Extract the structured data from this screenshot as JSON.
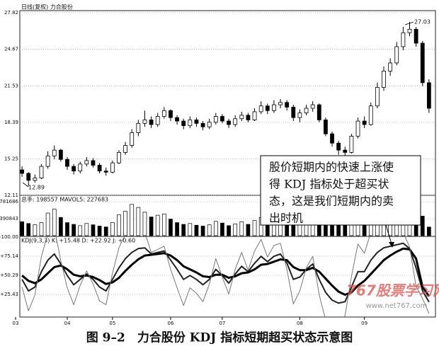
{
  "chart_data": [
    {
      "type": "candlestick",
      "title": "日线(复权)  力合股份",
      "open": [
        14.3,
        14.0,
        13.4,
        13.6,
        14.6,
        15.5,
        16.0,
        15.2,
        14.6,
        14.2,
        14.8,
        15.1,
        14.7,
        14.2,
        14.1,
        14.9,
        15.8,
        16.4,
        17.5,
        18.3,
        18.6,
        18.2,
        18.9,
        19.4,
        18.8,
        18.5,
        18.1,
        18.6,
        18.3,
        18.0,
        18.4,
        18.9,
        18.5,
        18.2,
        18.7,
        19.0,
        18.6,
        19.3,
        19.8,
        19.4,
        19.9,
        20.1,
        19.7,
        18.8,
        19.2,
        19.6,
        19.9,
        18.6,
        17.4,
        16.6,
        16.0,
        15.8,
        17.2,
        18.5,
        18.2,
        19.8,
        21.4,
        22.8,
        23.5,
        24.9,
        26.1,
        26.4,
        25.2,
        21.8
      ],
      "high": [
        14.6,
        14.1,
        13.9,
        14.8,
        15.9,
        16.4,
        16.1,
        15.4,
        14.8,
        15.0,
        15.4,
        15.3,
        14.9,
        14.5,
        15.1,
        16.0,
        16.7,
        17.8,
        18.6,
        19.4,
        18.9,
        19.2,
        19.7,
        19.5,
        19.0,
        18.7,
        18.9,
        18.8,
        18.5,
        18.7,
        19.2,
        19.1,
        18.7,
        19.0,
        19.3,
        19.2,
        19.6,
        20.2,
        20.0,
        20.3,
        20.4,
        20.3,
        19.9,
        19.5,
        19.9,
        20.2,
        20.0,
        18.8,
        17.6,
        16.8,
        16.3,
        17.4,
        18.8,
        18.9,
        20.1,
        21.8,
        23.2,
        23.9,
        25.3,
        26.6,
        27.03,
        26.6,
        25.4,
        22.1
      ],
      "low": [
        13.7,
        12.89,
        13.2,
        13.5,
        14.4,
        15.2,
        15.0,
        14.3,
        13.9,
        14.0,
        14.6,
        14.5,
        14.0,
        13.8,
        14.0,
        14.8,
        15.6,
        16.2,
        17.2,
        18.0,
        17.9,
        18.0,
        18.7,
        18.5,
        18.2,
        17.8,
        17.9,
        18.0,
        17.7,
        17.8,
        18.2,
        18.3,
        17.9,
        18.0,
        18.5,
        18.4,
        18.5,
        19.1,
        19.1,
        19.2,
        19.6,
        19.4,
        18.5,
        18.4,
        19.0,
        19.3,
        18.4,
        17.2,
        16.3,
        15.6,
        15.3,
        15.7,
        17.0,
        17.9,
        18.1,
        19.6,
        21.1,
        22.4,
        23.3,
        24.6,
        25.8,
        24.9,
        21.5,
        19.2
      ],
      "close": [
        14.0,
        13.4,
        13.6,
        14.6,
        15.5,
        16.0,
        15.2,
        14.6,
        14.2,
        14.8,
        15.1,
        14.7,
        14.2,
        14.1,
        14.9,
        15.8,
        16.4,
        17.5,
        18.3,
        18.6,
        18.2,
        18.9,
        19.4,
        18.8,
        18.5,
        18.1,
        18.6,
        18.3,
        18.0,
        18.4,
        18.9,
        18.5,
        18.2,
        18.7,
        19.0,
        18.6,
        19.3,
        19.8,
        19.4,
        19.9,
        20.1,
        19.7,
        18.8,
        19.2,
        19.6,
        19.9,
        18.6,
        17.4,
        16.6,
        16.0,
        15.8,
        17.2,
        18.5,
        18.2,
        19.8,
        21.4,
        22.8,
        23.5,
        24.9,
        26.1,
        26.4,
        25.2,
        21.8,
        19.6
      ],
      "xlim": [
        -1,
        64
      ],
      "ylim": [
        12.11,
        27.82
      ],
      "yticks": [
        12.11,
        15.25,
        18.39,
        21.53,
        24.67,
        27.82
      ],
      "grid": true
    },
    {
      "type": "bar",
      "title": "总手: 198557 MAVOL5: 227683",
      "values": [
        320000,
        280000,
        250000,
        300000,
        520000,
        610000,
        420000,
        300000,
        260000,
        230000,
        280000,
        250000,
        220000,
        200000,
        300000,
        480000,
        560000,
        720000,
        650000,
        540000,
        430000,
        470000,
        500000,
        380000,
        300000,
        260000,
        280000,
        240000,
        220000,
        250000,
        330000,
        290000,
        230000,
        270000,
        320000,
        260000,
        350000,
        420000,
        360000,
        390000,
        400000,
        330000,
        280000,
        250000,
        300000,
        320000,
        360000,
        330000,
        290000,
        260000,
        240000,
        380000,
        450000,
        350000,
        520000,
        640000,
        700000,
        680000,
        760000,
        820000,
        740000,
        560000,
        450000,
        198557
      ],
      "ylim": [
        0,
        912000
      ],
      "yticks": [
        390843,
        781686
      ],
      "grid": true
    },
    {
      "type": "line",
      "title": "KDJ(9,3,3) K: +15.48 D: +22.92 J: +0.60",
      "series": [
        {
          "color": "#222",
          "stroke_width": 2,
          "values": [
            45,
            30,
            35,
            55,
            70,
            78,
            65,
            50,
            38,
            45,
            52,
            45,
            35,
            30,
            45,
            60,
            72,
            80,
            85,
            86,
            78,
            80,
            82,
            70,
            58,
            45,
            50,
            45,
            38,
            45,
            58,
            50,
            40,
            52,
            62,
            55,
            66,
            75,
            68,
            75,
            78,
            66,
            45,
            48,
            58,
            65,
            45,
            28,
            18,
            14,
            16,
            35,
            55,
            55,
            70,
            80,
            86,
            88,
            90,
            92,
            85,
            60,
            30,
            15.48
          ]
        },
        {
          "color": "#000",
          "stroke_width": 3,
          "values": [
            50,
            43,
            40,
            45,
            53,
            61,
            63,
            58,
            51,
            49,
            50,
            48,
            44,
            39,
            41,
            47,
            56,
            64,
            71,
            76,
            77,
            78,
            79,
            76,
            70,
            62,
            58,
            54,
            49,
            48,
            51,
            51,
            47,
            49,
            53,
            54,
            58,
            64,
            65,
            68,
            71,
            70,
            61,
            57,
            57,
            60,
            55,
            46,
            37,
            29,
            25,
            28,
            37,
            43,
            52,
            61,
            70,
            76,
            81,
            85,
            84,
            72,
            35,
            22.92
          ]
        },
        {
          "color": "#777",
          "stroke_width": 1,
          "values": [
            35,
            4,
            25,
            75,
            104,
            112,
            69,
            34,
            12,
            37,
            56,
            39,
            17,
            12,
            53,
            86,
            104,
            112,
            113,
            106,
            80,
            84,
            88,
            58,
            34,
            11,
            34,
            27,
            16,
            39,
            72,
            48,
            26,
            58,
            80,
            57,
            82,
            97,
            74,
            89,
            92,
            58,
            13,
            30,
            60,
            75,
            25,
            -8,
            -20,
            -16,
            -2,
            49,
            91,
            79,
            106,
            118,
            118,
            112,
            108,
            106,
            87,
            36,
            20,
            0.6
          ]
        }
      ],
      "ylim": [
        -4,
        104
      ],
      "yticks": [
        {
          "value": 100,
          "label": "+100.00"
        },
        {
          "value": 75.14,
          "label": "+75.14"
        },
        {
          "value": 50.29,
          "label": "+50.29"
        },
        {
          "value": 25.43,
          "label": "+25.43"
        }
      ],
      "xticks": [
        {
          "value": -1,
          "label": "03"
        },
        {
          "value": 7,
          "label": "04"
        },
        {
          "value": 14,
          "label": "05"
        },
        {
          "value": 23,
          "label": "06"
        },
        {
          "value": 31,
          "label": "07"
        },
        {
          "value": 43,
          "label": "08"
        },
        {
          "value": 53,
          "label": "09"
        }
      ],
      "grid": true
    }
  ],
  "annotation": {
    "lines": [
      "股价短期内的快速上涨使",
      "得 KDJ 指标处于超买状",
      "态，这是我们短期内的卖",
      "出时机"
    ]
  },
  "watermark": {
    "title": "767股票学习网",
    "url": "www.net767.com"
  },
  "caption": "图 9–2　力合股份 KDJ 指标短期超买状态示意图"
}
